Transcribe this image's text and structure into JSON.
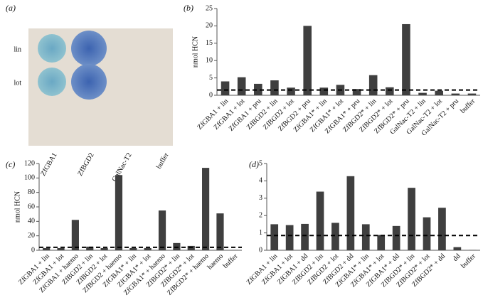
{
  "panel_a": {
    "panel_label": "(a)",
    "rows": [
      "lin",
      "lot"
    ],
    "columns": [
      "ZfGBA1",
      "ZfBGD2",
      "GalNac-T2",
      "buffer"
    ]
  },
  "chart_data": [
    {
      "type": "bar",
      "panel_label": "(b)",
      "y_label": "nmol HCN",
      "color": "#3f3f3f",
      "categories": [
        "ZfGBA1 + lin",
        "ZfGBA1 + lot",
        "ZfGBA1 + pru",
        "ZfBGD2 + lin",
        "ZfBGD2 + lot",
        "ZfBGD2 + pru",
        "ZfGBA1* + lin",
        "ZfGBA1* + lot",
        "ZfGBA1* + pru",
        "ZfBGD2* + lin",
        "ZfBGD2* + lot",
        "ZfBGD2* + pru",
        "GalNac-T2 + lin",
        "GalNac-T2 + lot",
        "GalNac-T2 + pru",
        "buffer"
      ],
      "values": [
        4,
        5.2,
        3.3,
        4.3,
        2.2,
        20,
        2.2,
        3,
        1.8,
        5.8,
        2.3,
        20.5,
        0.7,
        1.3,
        0.5,
        0.5
      ],
      "threshold": 1.5,
      "ylim": [
        0,
        25
      ],
      "yticks": [
        0,
        5,
        10,
        15,
        20,
        25
      ]
    },
    {
      "type": "bar",
      "panel_label": "(c)",
      "y_label": "nmol HCN",
      "color": "#3f3f3f",
      "categories": [
        "ZfGBA1 + lin",
        "ZfGBA1 + lot",
        "ZfGBA1 + haemo",
        "ZfBGD2 + lin",
        "ZfBGD2 + lot",
        "ZfBGD2 + haemo",
        "ZfGBA1* + lin",
        "ZfGBA1* + lot",
        "ZfGBA1* + haemo",
        "ZfBGD2* + lin",
        "ZfBGD2* + lot",
        "ZfBGD2* + haemo",
        "haemo",
        "buffer"
      ],
      "values": [
        3,
        3,
        42,
        5,
        3,
        104,
        3,
        3,
        55,
        10,
        6,
        114,
        51,
        0.5
      ],
      "threshold": 4,
      "ylim": [
        0,
        120
      ],
      "yticks": [
        0,
        20,
        40,
        60,
        80,
        100,
        120
      ]
    },
    {
      "type": "bar",
      "panel_label": "(d)",
      "color": "#3f3f3f",
      "categories": [
        "ZfGBA1 + lin",
        "ZfGBA1 + lot",
        "ZfGBA1 + dd",
        "ZfBGD2 + lin",
        "ZfBGD2 + lot",
        "ZfBGD2 + dd",
        "ZfGBA1* + lin",
        "ZfGBA1* + lot",
        "ZfGBA1* + dd",
        "ZfBGD2* + lin",
        "ZfBGD2* + lot",
        "ZfBGD2* + dd",
        "dd",
        "buffer"
      ],
      "values": [
        1.5,
        1.45,
        1.52,
        3.38,
        1.58,
        4.27,
        1.5,
        0.88,
        1.4,
        3.6,
        1.9,
        2.45,
        0.18,
        0.02
      ],
      "threshold": 0.85,
      "ylim": [
        0,
        5
      ],
      "yticks": [
        0,
        1,
        2,
        3,
        4,
        5
      ]
    }
  ]
}
